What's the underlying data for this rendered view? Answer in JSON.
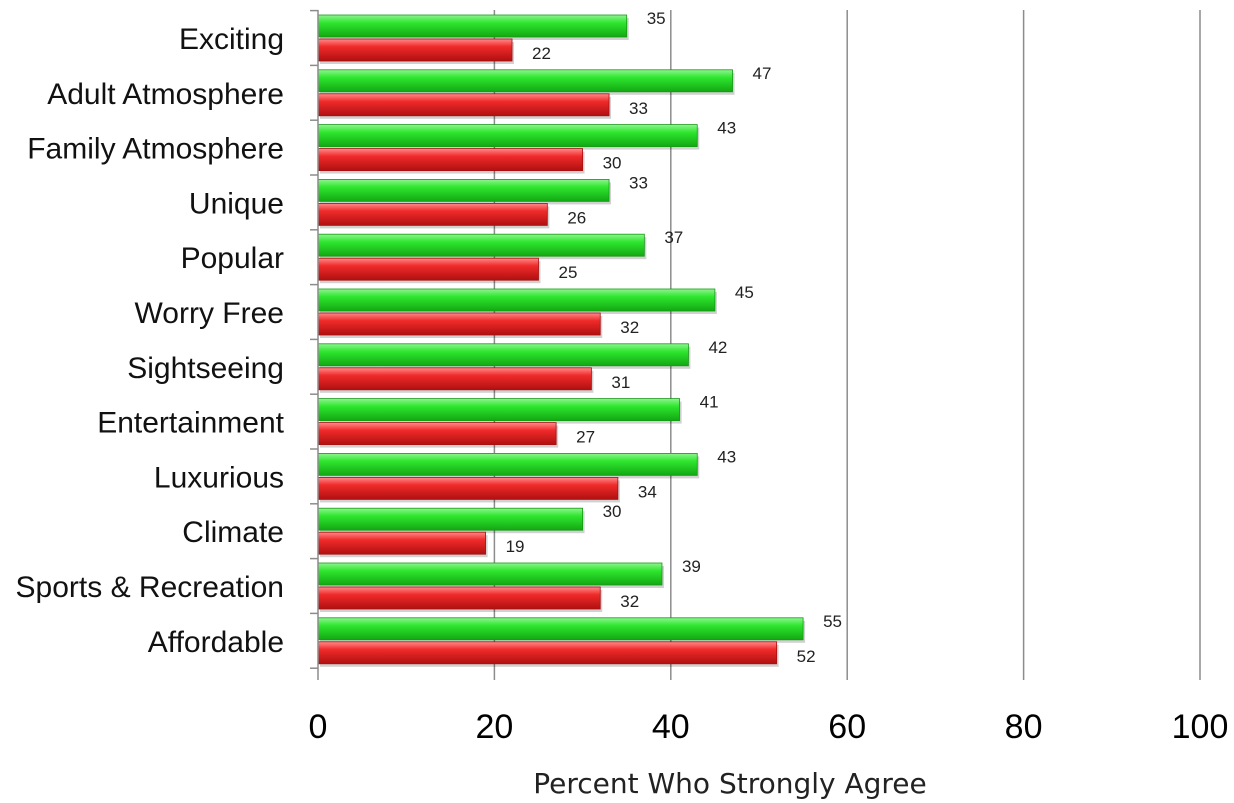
{
  "chart_data": {
    "type": "bar",
    "orientation": "horizontal",
    "xlabel": "Percent Who Strongly Agree",
    "ylabel": "",
    "xlim": [
      0,
      100
    ],
    "xticks": [
      0,
      20,
      40,
      60,
      80,
      100
    ],
    "grid": true,
    "categories": [
      "Exciting",
      "Adult Atmosphere",
      "Family Atmosphere",
      "Unique",
      "Popular",
      "Worry Free",
      "Sightseeing",
      "Entertainment",
      "Luxurious",
      "Climate",
      "Sports & Recreation",
      "Affordable"
    ],
    "series": [
      {
        "color": "#22dd22",
        "values": [
          35,
          47,
          43,
          33,
          37,
          45,
          42,
          41,
          43,
          30,
          39,
          55
        ]
      },
      {
        "color": "#ee2222",
        "values": [
          22,
          33,
          30,
          26,
          25,
          32,
          31,
          27,
          34,
          19,
          32,
          52
        ]
      }
    ]
  }
}
